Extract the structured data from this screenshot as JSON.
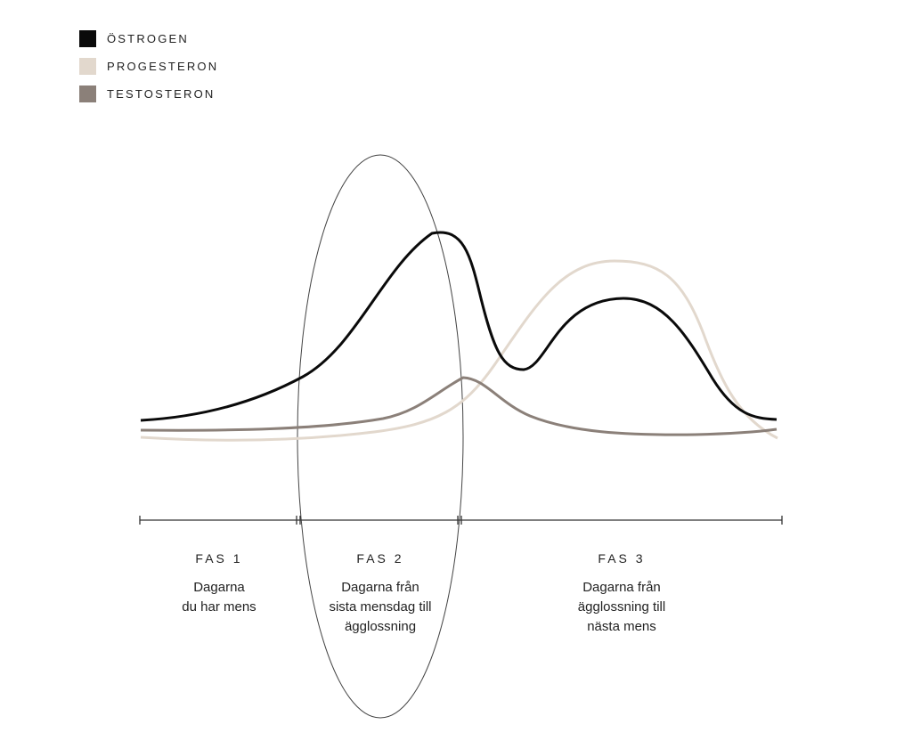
{
  "colors": {
    "ostrogen": "#0a0a0a",
    "progesteron": "#e2d8cd",
    "testosteron": "#8b8079",
    "axis": "#333333",
    "ellipse": "#444444"
  },
  "legend": [
    {
      "label": "ÖSTROGEN",
      "color": "#0a0a0a"
    },
    {
      "label": "PROGESTERON",
      "color": "#e2d8cd"
    },
    {
      "label": "TESTOSTERON",
      "color": "#8b8079"
    }
  ],
  "phases": [
    {
      "title": "FAS 1",
      "desc": "Dagarna\ndu har mens"
    },
    {
      "title": "FAS 2",
      "desc": "Dagarna från\nsista mensdag till\nägglossning"
    },
    {
      "title": "FAS 3",
      "desc": "Dagarna från\nägglossning till\nnästa mens"
    }
  ]
}
